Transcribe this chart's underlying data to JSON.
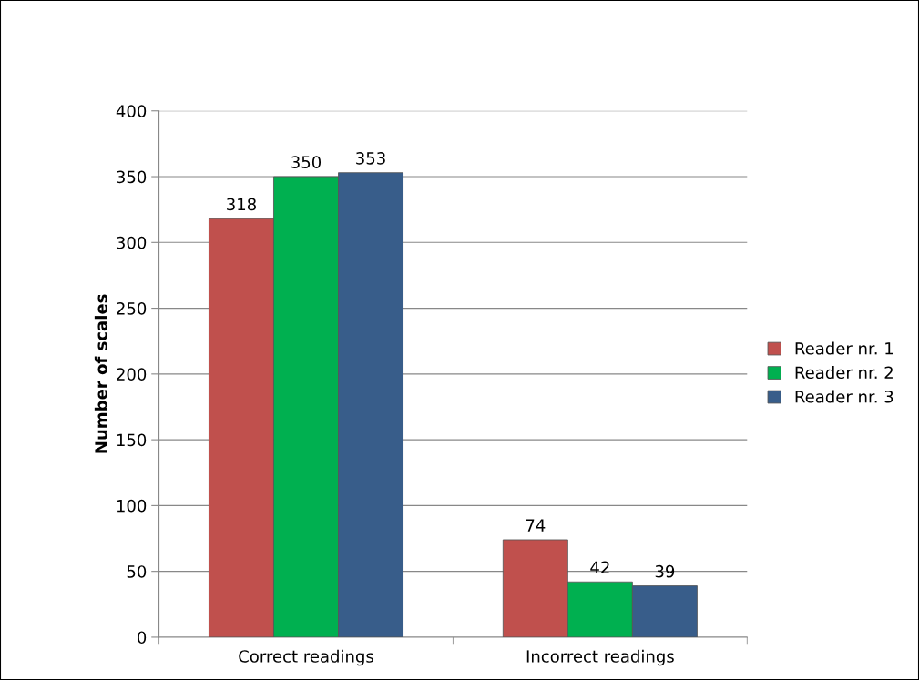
{
  "chart_data": {
    "type": "bar",
    "ylabel": "Number of scales",
    "categories": [
      "Correct readings",
      "Incorrect readings"
    ],
    "series": [
      {
        "name": "Reader nr. 1",
        "color": "#c0504d",
        "values": [
          318,
          74
        ]
      },
      {
        "name": "Reader nr. 2",
        "color": "#00b050",
        "values": [
          350,
          42
        ]
      },
      {
        "name": "Reader nr. 3",
        "color": "#385d8a",
        "values": [
          353,
          39
        ]
      }
    ],
    "ylim": [
      0,
      400
    ],
    "yticks": [
      0,
      50,
      100,
      150,
      200,
      250,
      300,
      350,
      400
    ],
    "grid": "y",
    "legend": "right",
    "data_labels": true
  }
}
